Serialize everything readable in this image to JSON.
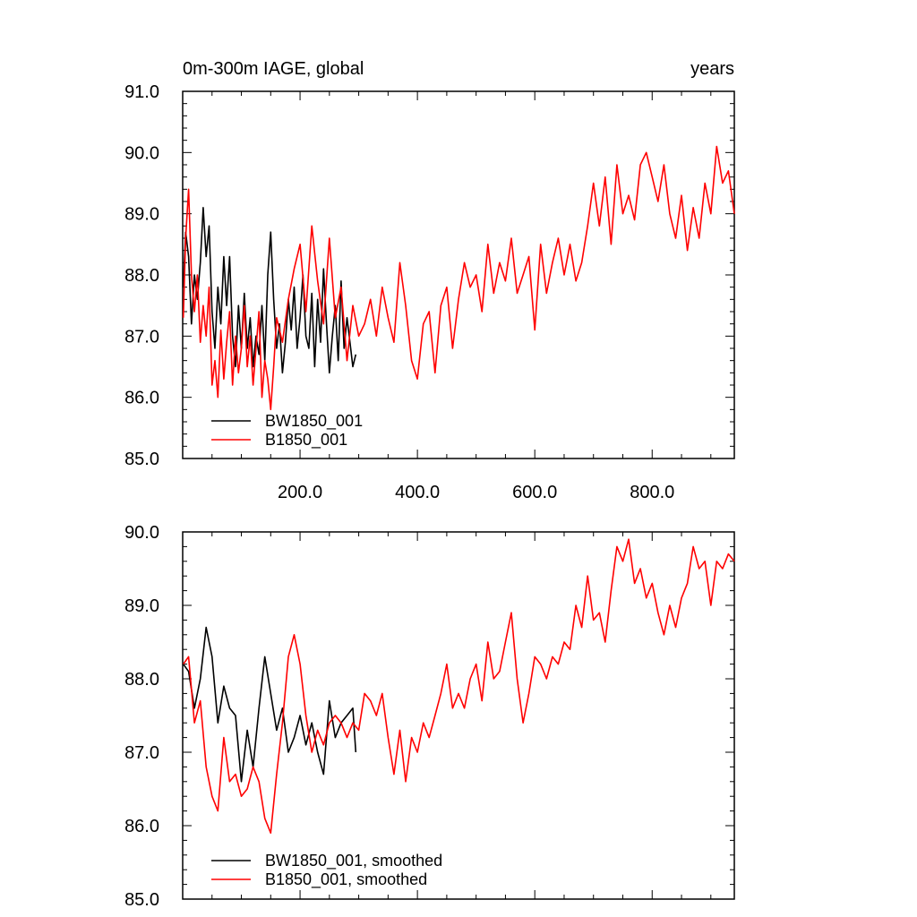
{
  "colors": {
    "black": "#000000",
    "red": "#ff0000"
  },
  "chart_data": [
    {
      "type": "line",
      "title_left": "0m-300m IAGE, global",
      "title_right": "years",
      "xlim": [
        0,
        940
      ],
      "ylim": [
        85.0,
        91.0
      ],
      "yticks": [
        "85.0",
        "86.0",
        "87.0",
        "88.0",
        "89.0",
        "90.0",
        "91.0"
      ],
      "xticks": [
        "200.0",
        "400.0",
        "600.0",
        "800.0"
      ],
      "legend": [
        "BW1850_001",
        "B1850_001"
      ],
      "series": [
        {
          "name": "BW1850_001",
          "color": "#000000",
          "x": [
            1,
            5,
            10,
            15,
            20,
            25,
            30,
            35,
            40,
            45,
            50,
            55,
            60,
            65,
            70,
            75,
            80,
            85,
            90,
            95,
            100,
            105,
            110,
            115,
            120,
            125,
            130,
            135,
            140,
            145,
            150,
            155,
            160,
            165,
            170,
            175,
            180,
            185,
            190,
            195,
            200,
            205,
            210,
            215,
            220,
            225,
            230,
            235,
            240,
            245,
            250,
            255,
            260,
            265,
            270,
            275,
            280,
            285,
            290,
            295
          ],
          "values": [
            87.8,
            88.7,
            88.3,
            87.2,
            88.0,
            87.6,
            88.2,
            89.1,
            88.3,
            88.8,
            87.4,
            86.8,
            87.8,
            87.2,
            88.3,
            87.5,
            88.3,
            87.0,
            86.5,
            87.5,
            86.8,
            87.7,
            86.8,
            87.3,
            86.5,
            87.0,
            86.7,
            87.5,
            86.6,
            88.0,
            88.7,
            87.6,
            86.8,
            87.2,
            86.4,
            86.9,
            87.6,
            87.1,
            87.8,
            86.8,
            87.3,
            88.0,
            87.0,
            86.8,
            87.7,
            86.5,
            87.6,
            86.9,
            88.1,
            87.2,
            86.4,
            87.0,
            87.5,
            86.6,
            87.9,
            86.8,
            87.3,
            86.9,
            86.5,
            86.7
          ]
        },
        {
          "name": "B1850_001",
          "color": "#ff0000",
          "x": [
            1,
            5,
            10,
            15,
            20,
            25,
            30,
            35,
            40,
            45,
            50,
            55,
            60,
            65,
            70,
            75,
            80,
            85,
            90,
            95,
            100,
            105,
            110,
            115,
            120,
            125,
            130,
            135,
            140,
            145,
            150,
            155,
            160,
            170,
            180,
            190,
            200,
            210,
            220,
            230,
            240,
            250,
            260,
            270,
            280,
            290,
            300,
            310,
            320,
            330,
            340,
            350,
            360,
            370,
            380,
            390,
            400,
            410,
            420,
            430,
            440,
            450,
            460,
            470,
            480,
            490,
            500,
            510,
            520,
            530,
            540,
            550,
            560,
            570,
            580,
            590,
            600,
            610,
            620,
            630,
            640,
            650,
            660,
            670,
            680,
            690,
            700,
            710,
            720,
            730,
            740,
            750,
            760,
            770,
            780,
            790,
            800,
            810,
            820,
            830,
            840,
            850,
            860,
            870,
            880,
            890,
            900,
            910,
            920,
            930,
            940
          ],
          "values": [
            87.3,
            88.6,
            89.4,
            88.0,
            87.4,
            88.0,
            86.9,
            87.5,
            87.0,
            87.8,
            86.2,
            86.6,
            86.0,
            87.1,
            86.3,
            86.9,
            87.4,
            86.2,
            87.0,
            86.4,
            86.8,
            87.5,
            86.5,
            87.0,
            86.2,
            86.8,
            87.4,
            86.0,
            86.6,
            86.3,
            85.8,
            86.5,
            87.3,
            86.9,
            87.6,
            88.1,
            88.5,
            87.4,
            88.8,
            87.9,
            87.2,
            88.6,
            87.3,
            87.8,
            86.6,
            87.5,
            87.0,
            87.2,
            87.6,
            87.0,
            87.8,
            87.3,
            86.9,
            88.2,
            87.5,
            86.6,
            86.3,
            87.2,
            87.4,
            86.4,
            87.5,
            87.8,
            86.8,
            87.6,
            88.2,
            87.8,
            88.0,
            87.4,
            88.5,
            87.7,
            88.2,
            87.9,
            88.6,
            87.7,
            88.0,
            88.3,
            87.1,
            88.5,
            87.7,
            88.2,
            88.6,
            88.0,
            88.5,
            87.9,
            88.2,
            88.8,
            89.5,
            88.8,
            89.6,
            88.5,
            89.8,
            89.0,
            89.3,
            88.9,
            89.8,
            90.0,
            89.6,
            89.2,
            89.8,
            89.0,
            88.6,
            89.3,
            88.4,
            89.1,
            88.6,
            89.5,
            89.0,
            90.1,
            89.5,
            89.7,
            89.0
          ]
        }
      ]
    },
    {
      "type": "line",
      "xlim": [
        0,
        940
      ],
      "ylim": [
        85.0,
        90.0
      ],
      "yticks": [
        "85.0",
        "86.0",
        "87.0",
        "88.0",
        "89.0",
        "90.0"
      ],
      "legend": [
        "BW1850_001, smoothed",
        "B1850_001, smoothed"
      ],
      "series": [
        {
          "name": "BW1850_001, smoothed",
          "color": "#000000",
          "x": [
            1,
            10,
            20,
            30,
            40,
            50,
            60,
            70,
            80,
            90,
            100,
            110,
            120,
            130,
            140,
            150,
            160,
            170,
            180,
            190,
            200,
            210,
            220,
            230,
            240,
            250,
            260,
            270,
            280,
            290,
            295
          ],
          "values": [
            88.2,
            88.1,
            87.6,
            88.0,
            88.7,
            88.3,
            87.4,
            87.9,
            87.6,
            87.5,
            86.6,
            87.3,
            86.8,
            87.6,
            88.3,
            87.8,
            87.3,
            87.6,
            87.0,
            87.2,
            87.5,
            87.1,
            87.4,
            87.0,
            86.7,
            87.7,
            87.2,
            87.4,
            87.5,
            87.6,
            87.0
          ]
        },
        {
          "name": "B1850_001, smoothed",
          "color": "#ff0000",
          "x": [
            1,
            10,
            20,
            30,
            40,
            50,
            60,
            70,
            80,
            90,
            100,
            110,
            120,
            130,
            140,
            150,
            160,
            170,
            180,
            190,
            200,
            210,
            220,
            230,
            240,
            250,
            260,
            270,
            280,
            290,
            300,
            310,
            320,
            330,
            340,
            350,
            360,
            370,
            380,
            390,
            400,
            410,
            420,
            430,
            440,
            450,
            460,
            470,
            480,
            490,
            500,
            510,
            520,
            530,
            540,
            550,
            560,
            570,
            580,
            590,
            600,
            610,
            620,
            630,
            640,
            650,
            660,
            670,
            680,
            690,
            700,
            710,
            720,
            730,
            740,
            750,
            760,
            770,
            780,
            790,
            800,
            810,
            820,
            830,
            840,
            850,
            860,
            870,
            880,
            890,
            900,
            910,
            920,
            930,
            940
          ],
          "values": [
            88.2,
            88.3,
            87.4,
            87.7,
            86.8,
            86.4,
            86.2,
            87.2,
            86.6,
            86.7,
            86.4,
            86.5,
            86.8,
            86.6,
            86.1,
            85.9,
            86.7,
            87.4,
            88.3,
            88.6,
            88.2,
            87.5,
            87.0,
            87.3,
            87.1,
            87.4,
            87.5,
            87.4,
            87.2,
            87.4,
            87.3,
            87.8,
            87.7,
            87.5,
            87.8,
            87.2,
            86.7,
            87.3,
            86.6,
            87.2,
            87.0,
            87.4,
            87.2,
            87.5,
            87.8,
            88.2,
            87.6,
            87.8,
            87.6,
            88.0,
            88.2,
            87.7,
            88.5,
            88.0,
            88.1,
            88.5,
            88.9,
            88.0,
            87.4,
            87.8,
            88.3,
            88.2,
            88.0,
            88.3,
            88.2,
            88.5,
            88.4,
            89.0,
            88.7,
            89.4,
            88.8,
            88.9,
            88.5,
            89.2,
            89.8,
            89.6,
            89.9,
            89.3,
            89.5,
            89.1,
            89.3,
            88.9,
            88.6,
            89.0,
            88.7,
            89.1,
            89.3,
            89.8,
            89.5,
            89.6,
            89.0,
            89.6,
            89.5,
            89.7,
            89.6
          ]
        }
      ]
    }
  ]
}
